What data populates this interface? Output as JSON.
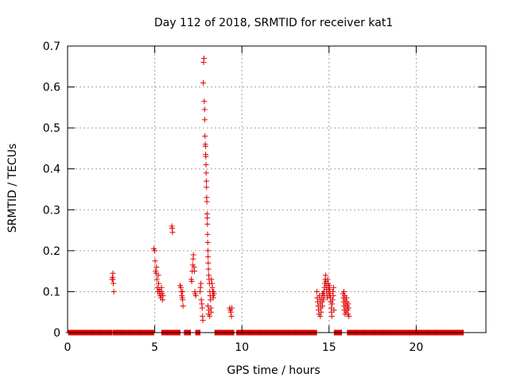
{
  "chart_data": {
    "type": "scatter",
    "title": "Day 112 of 2018, SRMTID for receiver kat1",
    "xlabel": "GPS time / hours",
    "ylabel": "SRMTID / TECUs",
    "xlim": [
      0,
      24
    ],
    "ylim": [
      0,
      0.7
    ],
    "xticks": [
      0,
      5,
      10,
      15,
      20
    ],
    "xtick_labels": [
      "0",
      "5",
      "10",
      "15",
      "20"
    ],
    "yticks": [
      0,
      0.1,
      0.2,
      0.3,
      0.4,
      0.5,
      0.6,
      0.7
    ],
    "ytick_labels": [
      "0",
      "0.1",
      "0.2",
      "0.3",
      "0.4",
      "0.5",
      "0.6",
      "0.7"
    ],
    "grid": true,
    "marker": "+",
    "color": "#e00000",
    "series": [
      {
        "name": "SRMTID",
        "zero_ranges": [
          [
            0.05,
            2.55
          ],
          [
            2.6,
            4.95
          ],
          [
            5.4,
            6.45
          ],
          [
            6.7,
            7.05
          ],
          [
            7.35,
            7.6
          ],
          [
            8.45,
            9.55
          ],
          [
            9.7,
            14.3
          ],
          [
            15.3,
            15.75
          ],
          [
            16.05,
            22.7
          ]
        ],
        "points": [
          [
            2.55,
            0.13
          ],
          [
            2.58,
            0.135
          ],
          [
            2.6,
            0.145
          ],
          [
            2.62,
            0.12
          ],
          [
            2.65,
            0.1
          ],
          [
            2.6,
            0.13
          ],
          [
            4.95,
            0.205
          ],
          [
            5.0,
            0.2
          ],
          [
            5.02,
            0.175
          ],
          [
            5.05,
            0.15
          ],
          [
            5.08,
            0.145
          ],
          [
            5.1,
            0.16
          ],
          [
            5.12,
            0.13
          ],
          [
            5.15,
            0.11
          ],
          [
            5.18,
            0.1
          ],
          [
            5.2,
            0.14
          ],
          [
            5.22,
            0.12
          ],
          [
            5.25,
            0.105
          ],
          [
            5.28,
            0.095
          ],
          [
            5.3,
            0.1
          ],
          [
            5.32,
            0.09
          ],
          [
            5.35,
            0.085
          ],
          [
            5.38,
            0.11
          ],
          [
            5.4,
            0.1
          ],
          [
            5.42,
            0.095
          ],
          [
            5.45,
            0.08
          ],
          [
            5.47,
            0.09
          ],
          [
            5.98,
            0.26
          ],
          [
            6.0,
            0.255
          ],
          [
            6.02,
            0.245
          ],
          [
            6.45,
            0.115
          ],
          [
            6.5,
            0.11
          ],
          [
            6.52,
            0.1
          ],
          [
            6.55,
            0.09
          ],
          [
            6.58,
            0.085
          ],
          [
            6.6,
            0.08
          ],
          [
            6.62,
            0.065
          ],
          [
            6.6,
            0.1
          ],
          [
            7.1,
            0.13
          ],
          [
            7.12,
            0.125
          ],
          [
            7.15,
            0.15
          ],
          [
            7.18,
            0.165
          ],
          [
            7.2,
            0.18
          ],
          [
            7.22,
            0.19
          ],
          [
            7.25,
            0.16
          ],
          [
            7.28,
            0.15
          ],
          [
            7.3,
            0.1
          ],
          [
            7.32,
            0.095
          ],
          [
            7.35,
            0.09
          ],
          [
            7.6,
            0.1
          ],
          [
            7.62,
            0.11
          ],
          [
            7.65,
            0.12
          ],
          [
            7.67,
            0.08
          ],
          [
            7.7,
            0.07
          ],
          [
            7.72,
            0.06
          ],
          [
            7.74,
            0.04
          ],
          [
            7.76,
            0.03
          ],
          [
            7.78,
            0.61
          ],
          [
            7.8,
            0.66
          ],
          [
            7.82,
            0.67
          ],
          [
            7.84,
            0.565
          ],
          [
            7.86,
            0.545
          ],
          [
            7.87,
            0.52
          ],
          [
            7.88,
            0.48
          ],
          [
            7.9,
            0.46
          ],
          [
            7.91,
            0.455
          ],
          [
            7.92,
            0.435
          ],
          [
            7.93,
            0.43
          ],
          [
            7.94,
            0.41
          ],
          [
            7.95,
            0.39
          ],
          [
            7.96,
            0.37
          ],
          [
            7.97,
            0.355
          ],
          [
            7.98,
            0.33
          ],
          [
            7.99,
            0.32
          ],
          [
            8.0,
            0.29
          ],
          [
            8.01,
            0.28
          ],
          [
            8.02,
            0.265
          ],
          [
            8.03,
            0.24
          ],
          [
            8.04,
            0.22
          ],
          [
            8.05,
            0.2
          ],
          [
            8.06,
            0.185
          ],
          [
            8.07,
            0.17
          ],
          [
            8.08,
            0.155
          ],
          [
            8.1,
            0.14
          ],
          [
            8.12,
            0.13
          ],
          [
            8.14,
            0.12
          ],
          [
            8.16,
            0.1
          ],
          [
            8.18,
            0.09
          ],
          [
            8.2,
            0.08
          ],
          [
            8.22,
            0.06
          ],
          [
            8.24,
            0.05
          ],
          [
            8.05,
            0.065
          ],
          [
            8.08,
            0.045
          ],
          [
            8.11,
            0.055
          ],
          [
            8.15,
            0.04
          ],
          [
            8.25,
            0.13
          ],
          [
            8.28,
            0.12
          ],
          [
            8.3,
            0.11
          ],
          [
            8.32,
            0.1
          ],
          [
            8.34,
            0.09
          ],
          [
            8.36,
            0.085
          ],
          [
            8.38,
            0.1
          ],
          [
            8.4,
            0.095
          ],
          [
            9.3,
            0.06
          ],
          [
            9.33,
            0.055
          ],
          [
            9.36,
            0.05
          ],
          [
            9.4,
            0.04
          ],
          [
            9.42,
            0.06
          ],
          [
            14.3,
            0.1
          ],
          [
            14.32,
            0.085
          ],
          [
            14.35,
            0.075
          ],
          [
            14.38,
            0.065
          ],
          [
            14.4,
            0.055
          ],
          [
            14.42,
            0.045
          ],
          [
            14.45,
            0.09
          ],
          [
            14.48,
            0.08
          ],
          [
            14.5,
            0.07
          ],
          [
            14.52,
            0.06
          ],
          [
            14.55,
            0.05
          ],
          [
            14.58,
            0.085
          ],
          [
            14.6,
            0.075
          ],
          [
            14.62,
            0.065
          ],
          [
            14.65,
            0.095
          ],
          [
            14.68,
            0.08
          ],
          [
            14.7,
            0.1
          ],
          [
            14.72,
            0.09
          ],
          [
            14.74,
            0.11
          ],
          [
            14.76,
            0.12
          ],
          [
            14.78,
            0.13
          ],
          [
            14.8,
            0.14
          ],
          [
            14.82,
            0.125
          ],
          [
            14.84,
            0.115
          ],
          [
            14.86,
            0.105
          ],
          [
            14.88,
            0.095
          ],
          [
            14.9,
            0.085
          ],
          [
            14.92,
            0.13
          ],
          [
            14.94,
            0.12
          ],
          [
            14.96,
            0.11
          ],
          [
            14.98,
            0.1
          ],
          [
            15.0,
            0.09
          ],
          [
            15.02,
            0.115
          ],
          [
            15.04,
            0.105
          ],
          [
            15.06,
            0.095
          ],
          [
            15.08,
            0.085
          ],
          [
            15.1,
            0.075
          ],
          [
            15.12,
            0.06
          ],
          [
            15.14,
            0.05
          ],
          [
            15.16,
            0.04
          ],
          [
            15.18,
            0.07
          ],
          [
            15.2,
            0.08
          ],
          [
            15.22,
            0.1
          ],
          [
            15.24,
            0.09
          ],
          [
            15.26,
            0.11
          ],
          [
            15.28,
            0.055
          ],
          [
            14.5,
            0.04
          ],
          [
            14.62,
            0.095
          ],
          [
            15.8,
            0.095
          ],
          [
            15.82,
            0.085
          ],
          [
            15.84,
            0.075
          ],
          [
            15.86,
            0.065
          ],
          [
            15.88,
            0.055
          ],
          [
            15.9,
            0.09
          ],
          [
            15.92,
            0.08
          ],
          [
            15.94,
            0.07
          ],
          [
            15.96,
            0.06
          ],
          [
            15.98,
            0.05
          ],
          [
            16.0,
            0.085
          ],
          [
            16.02,
            0.075
          ],
          [
            16.04,
            0.065
          ],
          [
            16.06,
            0.055
          ],
          [
            16.08,
            0.045
          ],
          [
            16.1,
            0.07
          ],
          [
            16.12,
            0.06
          ],
          [
            16.14,
            0.04
          ],
          [
            15.85,
            0.1
          ],
          [
            15.92,
            0.045
          ]
        ]
      }
    ]
  }
}
